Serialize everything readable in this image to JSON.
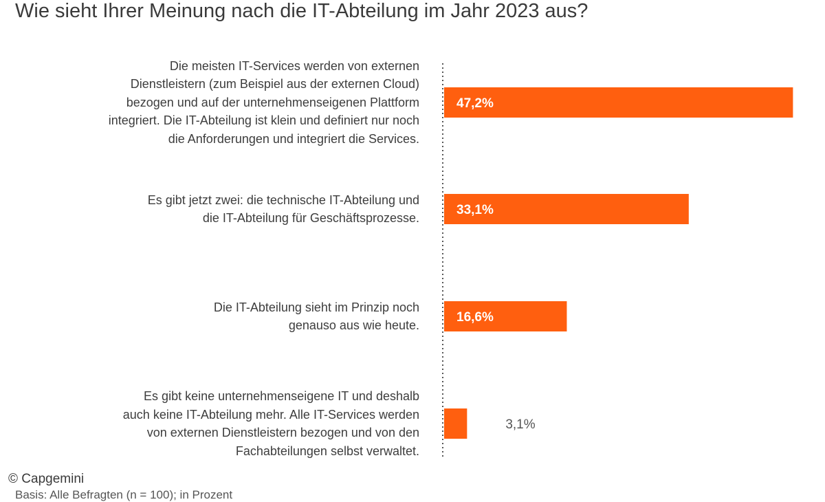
{
  "header": {
    "title": "Wie sieht Ihrer Meinung nach die IT-Abteilung im Jahr 2023 aus?"
  },
  "footer": {
    "credit": "© Capgemini",
    "footnote": "Basis: Alle Befragten (n = 100); in Prozent"
  },
  "colors": {
    "bar": "#ff5f0f",
    "axis": "#555555",
    "inside_label": "#ffffff",
    "outside_label": "#555555"
  },
  "chart_data": {
    "type": "bar",
    "orientation": "horizontal",
    "title": "Wie sieht Ihrer Meinung nach die IT-Abteilung im Jahr 2023 aus?",
    "categories": [
      "Die meisten IT-Services werden von externen Dienstleistern (zum Beispiel aus der externen Cloud) bezogen und auf der unternehmenseigenen Plattform integriert. Die IT-Abteilung ist klein und definiert nur noch die Anforderungen und integriert die Services.",
      "Es gibt jetzt zwei: die technische IT-Abteilung und die IT-Abteilung für Geschäftsprozesse.",
      "Die IT-Abteilung sieht im Prinzip noch genauso aus wie heute.",
      "Es gibt keine unternehmenseigene IT und deshalb auch keine IT-Abteilung mehr. Alle IT-Services werden von externen Dienstleistern bezogen und von den Fachabteilungen selbst verwaltet."
    ],
    "category_lines": [
      [
        "Die meisten IT-Services werden von externen",
        "Dienstleistern (zum Beispiel aus der externen Cloud)",
        "bezogen und auf der unternehmenseigenen Plattform",
        "integriert. Die IT-Abteilung ist klein und definiert nur noch",
        "die Anforderungen und integriert die Services."
      ],
      [
        "Es gibt jetzt zwei: die technische IT-Abteilung und",
        "die IT-Abteilung für Geschäftsprozesse."
      ],
      [
        "Die IT-Abteilung sieht im Prinzip noch",
        "genauso aus wie heute."
      ],
      [
        "Es gibt keine unternehmenseigene IT und deshalb",
        "auch keine IT-Abteilung mehr. Alle IT-Services werden",
        "von externen Dienstleistern bezogen und von den",
        "Fachabteilungen selbst verwaltet."
      ]
    ],
    "values": [
      47.2,
      33.1,
      16.6,
      3.1
    ],
    "value_labels": [
      "47,2%",
      "33,1%",
      "16,6%",
      "3,1%"
    ],
    "xlim": [
      0,
      48
    ],
    "grid": false,
    "legend": "none"
  }
}
